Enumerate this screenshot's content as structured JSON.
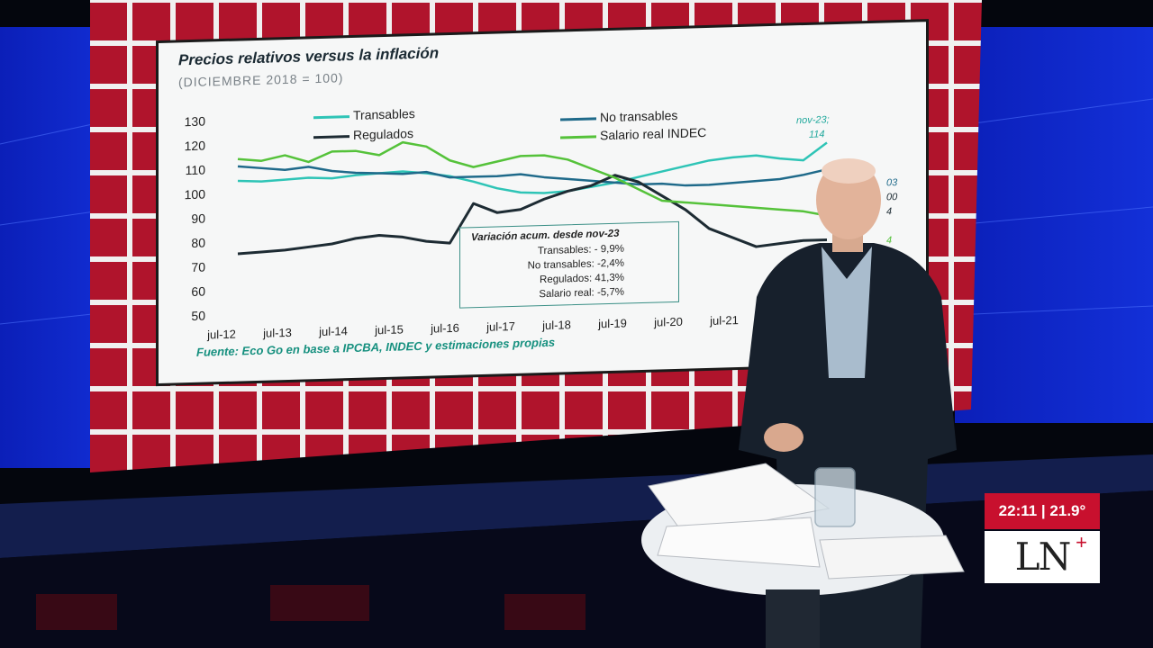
{
  "chart_data": {
    "type": "line",
    "title": "Precios relativos versus la inflación",
    "subtitle": "(DICIEMBRE 2018 = 100)",
    "source": "Fuente: Eco Go en base a IPCBA, INDEC y estimaciones propias",
    "ylim": [
      50,
      130
    ],
    "yticks": [
      "130",
      "120",
      "110",
      "100",
      "90",
      "80",
      "70",
      "60",
      "50"
    ],
    "xticks": [
      "jul-12",
      "jul-13",
      "jul-14",
      "jul-15",
      "jul-16",
      "jul-17",
      "jul-18",
      "jul-19",
      "jul-20",
      "jul-21"
    ],
    "grid": false,
    "legend": "top",
    "series": [
      {
        "name": "Transables",
        "color": "#2ec4b6",
        "values": [
          105,
          104.5,
          105,
          105.5,
          105,
          106,
          106.5,
          107,
          106,
          104.5,
          102,
          99,
          97,
          96.5,
          97,
          98.5,
          100,
          102,
          104,
          106,
          108,
          109,
          109.5,
          108,
          107,
          114
        ]
      },
      {
        "name": "No transables",
        "color": "#1f6a8a",
        "values": [
          111,
          110,
          109,
          110,
          108,
          107,
          106.5,
          106,
          106.5,
          104,
          104,
          104,
          104.5,
          103,
          102,
          101,
          100,
          99,
          99,
          98,
          98,
          98.5,
          99,
          99.5,
          101,
          103
        ]
      },
      {
        "name": "Regulados",
        "color": "#1d2b33",
        "values": [
          75,
          75.5,
          76,
          77,
          78,
          80,
          81,
          80,
          78,
          77,
          93,
          89,
          90,
          94,
          97,
          99,
          103,
          100,
          94,
          88,
          80,
          76,
          72,
          73,
          74,
          74
        ]
      },
      {
        "name": "Salario real INDEC",
        "color": "#55c23a",
        "values": [
          114,
          113,
          115,
          112,
          116,
          116,
          114,
          119,
          117,
          111,
          108,
          110,
          112,
          112,
          110,
          106,
          102,
          97,
          92,
          91,
          90,
          89,
          88,
          87,
          86,
          84
        ]
      }
    ],
    "end_labels": [
      "nov-23;",
      "114",
      "03",
      "00",
      "4",
      "4"
    ],
    "annotation": {
      "title": "Variación acum. desde nov-23",
      "lines": [
        "Transables: - 9,9%",
        "No transables: -2,4%",
        "Regulados: 41,3%",
        "Salario real: -5,7%"
      ]
    }
  },
  "badge": {
    "time_temp": "22:11 | 21.9°",
    "logo_text": "LN",
    "logo_plus": "+"
  }
}
